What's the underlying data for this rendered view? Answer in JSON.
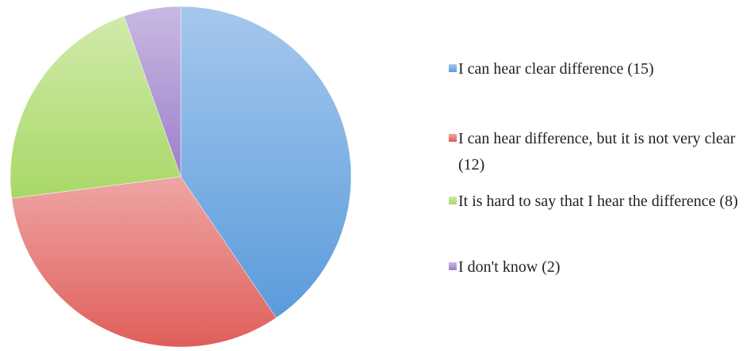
{
  "chart_data": {
    "type": "pie",
    "categories": [
      "I can hear clear difference (15)",
      "I can hear difference, but it is not very clear (12)",
      "It is hard to say that I hear the difference (8)",
      "I don't know (2)"
    ],
    "values": [
      15,
      12,
      8,
      2
    ],
    "colors": [
      "#5b9bdc",
      "#e05e5a",
      "#a9d866",
      "#9d7fcb"
    ],
    "legend": "right"
  }
}
